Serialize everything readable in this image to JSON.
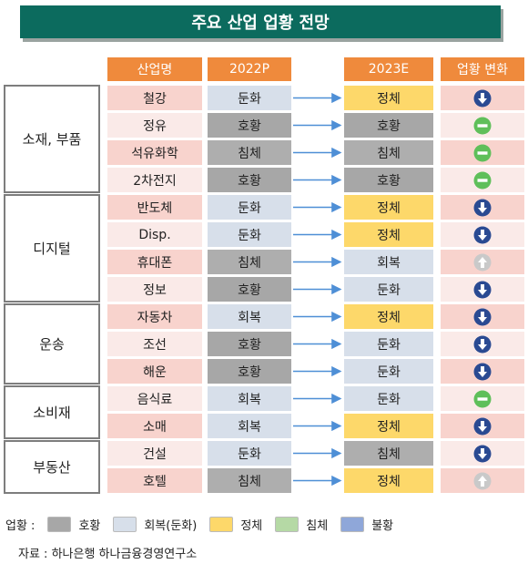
{
  "title": "주요 산업 업황 전망",
  "headers": {
    "industry": "산업명",
    "y2022": "2022P",
    "y2023": "2023E",
    "change": "업황 변화"
  },
  "colors": {
    "good": "#a7a7a7",
    "recovery": "#d7dfea",
    "stagnant": "#fdd86a",
    "downturn": "#aeaeae",
    "slump": "#8fa7d9",
    "row_pink": "#f8d3cd",
    "row_light": "#faeae8",
    "down_arrow": "#2a4a92",
    "up_arrow": "#c9c9c9",
    "same": "#5fbf5a"
  },
  "groups": [
    {
      "name": "소재, 부품"
    },
    {
      "name": "디지털"
    },
    {
      "name": "운송"
    },
    {
      "name": "소비재"
    },
    {
      "name": "부동산"
    }
  ],
  "chart_data": {
    "type": "table",
    "columns": [
      "산업명",
      "2022P",
      "2023E",
      "업황 변화"
    ],
    "rows": [
      {
        "group": "소재, 부품",
        "industry": "철강",
        "y2022": "둔화",
        "y2023": "정체",
        "change": "down"
      },
      {
        "group": "소재, 부품",
        "industry": "정유",
        "y2022": "호황",
        "y2023": "호황",
        "change": "same"
      },
      {
        "group": "소재, 부품",
        "industry": "석유화학",
        "y2022": "침체",
        "y2023": "침체",
        "change": "same"
      },
      {
        "group": "소재, 부품",
        "industry": "2차전지",
        "y2022": "호황",
        "y2023": "호황",
        "change": "same"
      },
      {
        "group": "디지털",
        "industry": "반도체",
        "y2022": "둔화",
        "y2023": "정체",
        "change": "down"
      },
      {
        "group": "디지털",
        "industry": "Disp.",
        "y2022": "둔화",
        "y2023": "정체",
        "change": "down"
      },
      {
        "group": "디지털",
        "industry": "휴대폰",
        "y2022": "침체",
        "y2023": "회복",
        "change": "up"
      },
      {
        "group": "디지털",
        "industry": "정보",
        "y2022": "호황",
        "y2023": "둔화",
        "change": "down"
      },
      {
        "group": "운송",
        "industry": "자동차",
        "y2022": "회복",
        "y2023": "정체",
        "change": "down"
      },
      {
        "group": "운송",
        "industry": "조선",
        "y2022": "호황",
        "y2023": "둔화",
        "change": "down"
      },
      {
        "group": "운송",
        "industry": "해운",
        "y2022": "호황",
        "y2023": "둔화",
        "change": "down"
      },
      {
        "group": "소비재",
        "industry": "음식료",
        "y2022": "회복",
        "y2023": "둔화",
        "change": "same"
      },
      {
        "group": "소비재",
        "industry": "소매",
        "y2022": "회복",
        "y2023": "정체",
        "change": "down"
      },
      {
        "group": "부동산",
        "industry": "건설",
        "y2022": "둔화",
        "y2023": "침체",
        "change": "down"
      },
      {
        "group": "부동산",
        "industry": "호텔",
        "y2022": "침체",
        "y2023": "정체",
        "change": "up"
      }
    ]
  },
  "legend": {
    "label": "업황 :",
    "items": [
      {
        "label": "호황",
        "color": "#a7a7a7"
      },
      {
        "label": "회복(둔화)",
        "color": "#d7dfea"
      },
      {
        "label": "정체",
        "color": "#fdd86a"
      },
      {
        "label": "침체",
        "color": "#b5d9a5"
      },
      {
        "label": "불황",
        "color": "#8fa7d9"
      }
    ]
  },
  "source": "자료 : 하나은행 하나금융경영연구소"
}
